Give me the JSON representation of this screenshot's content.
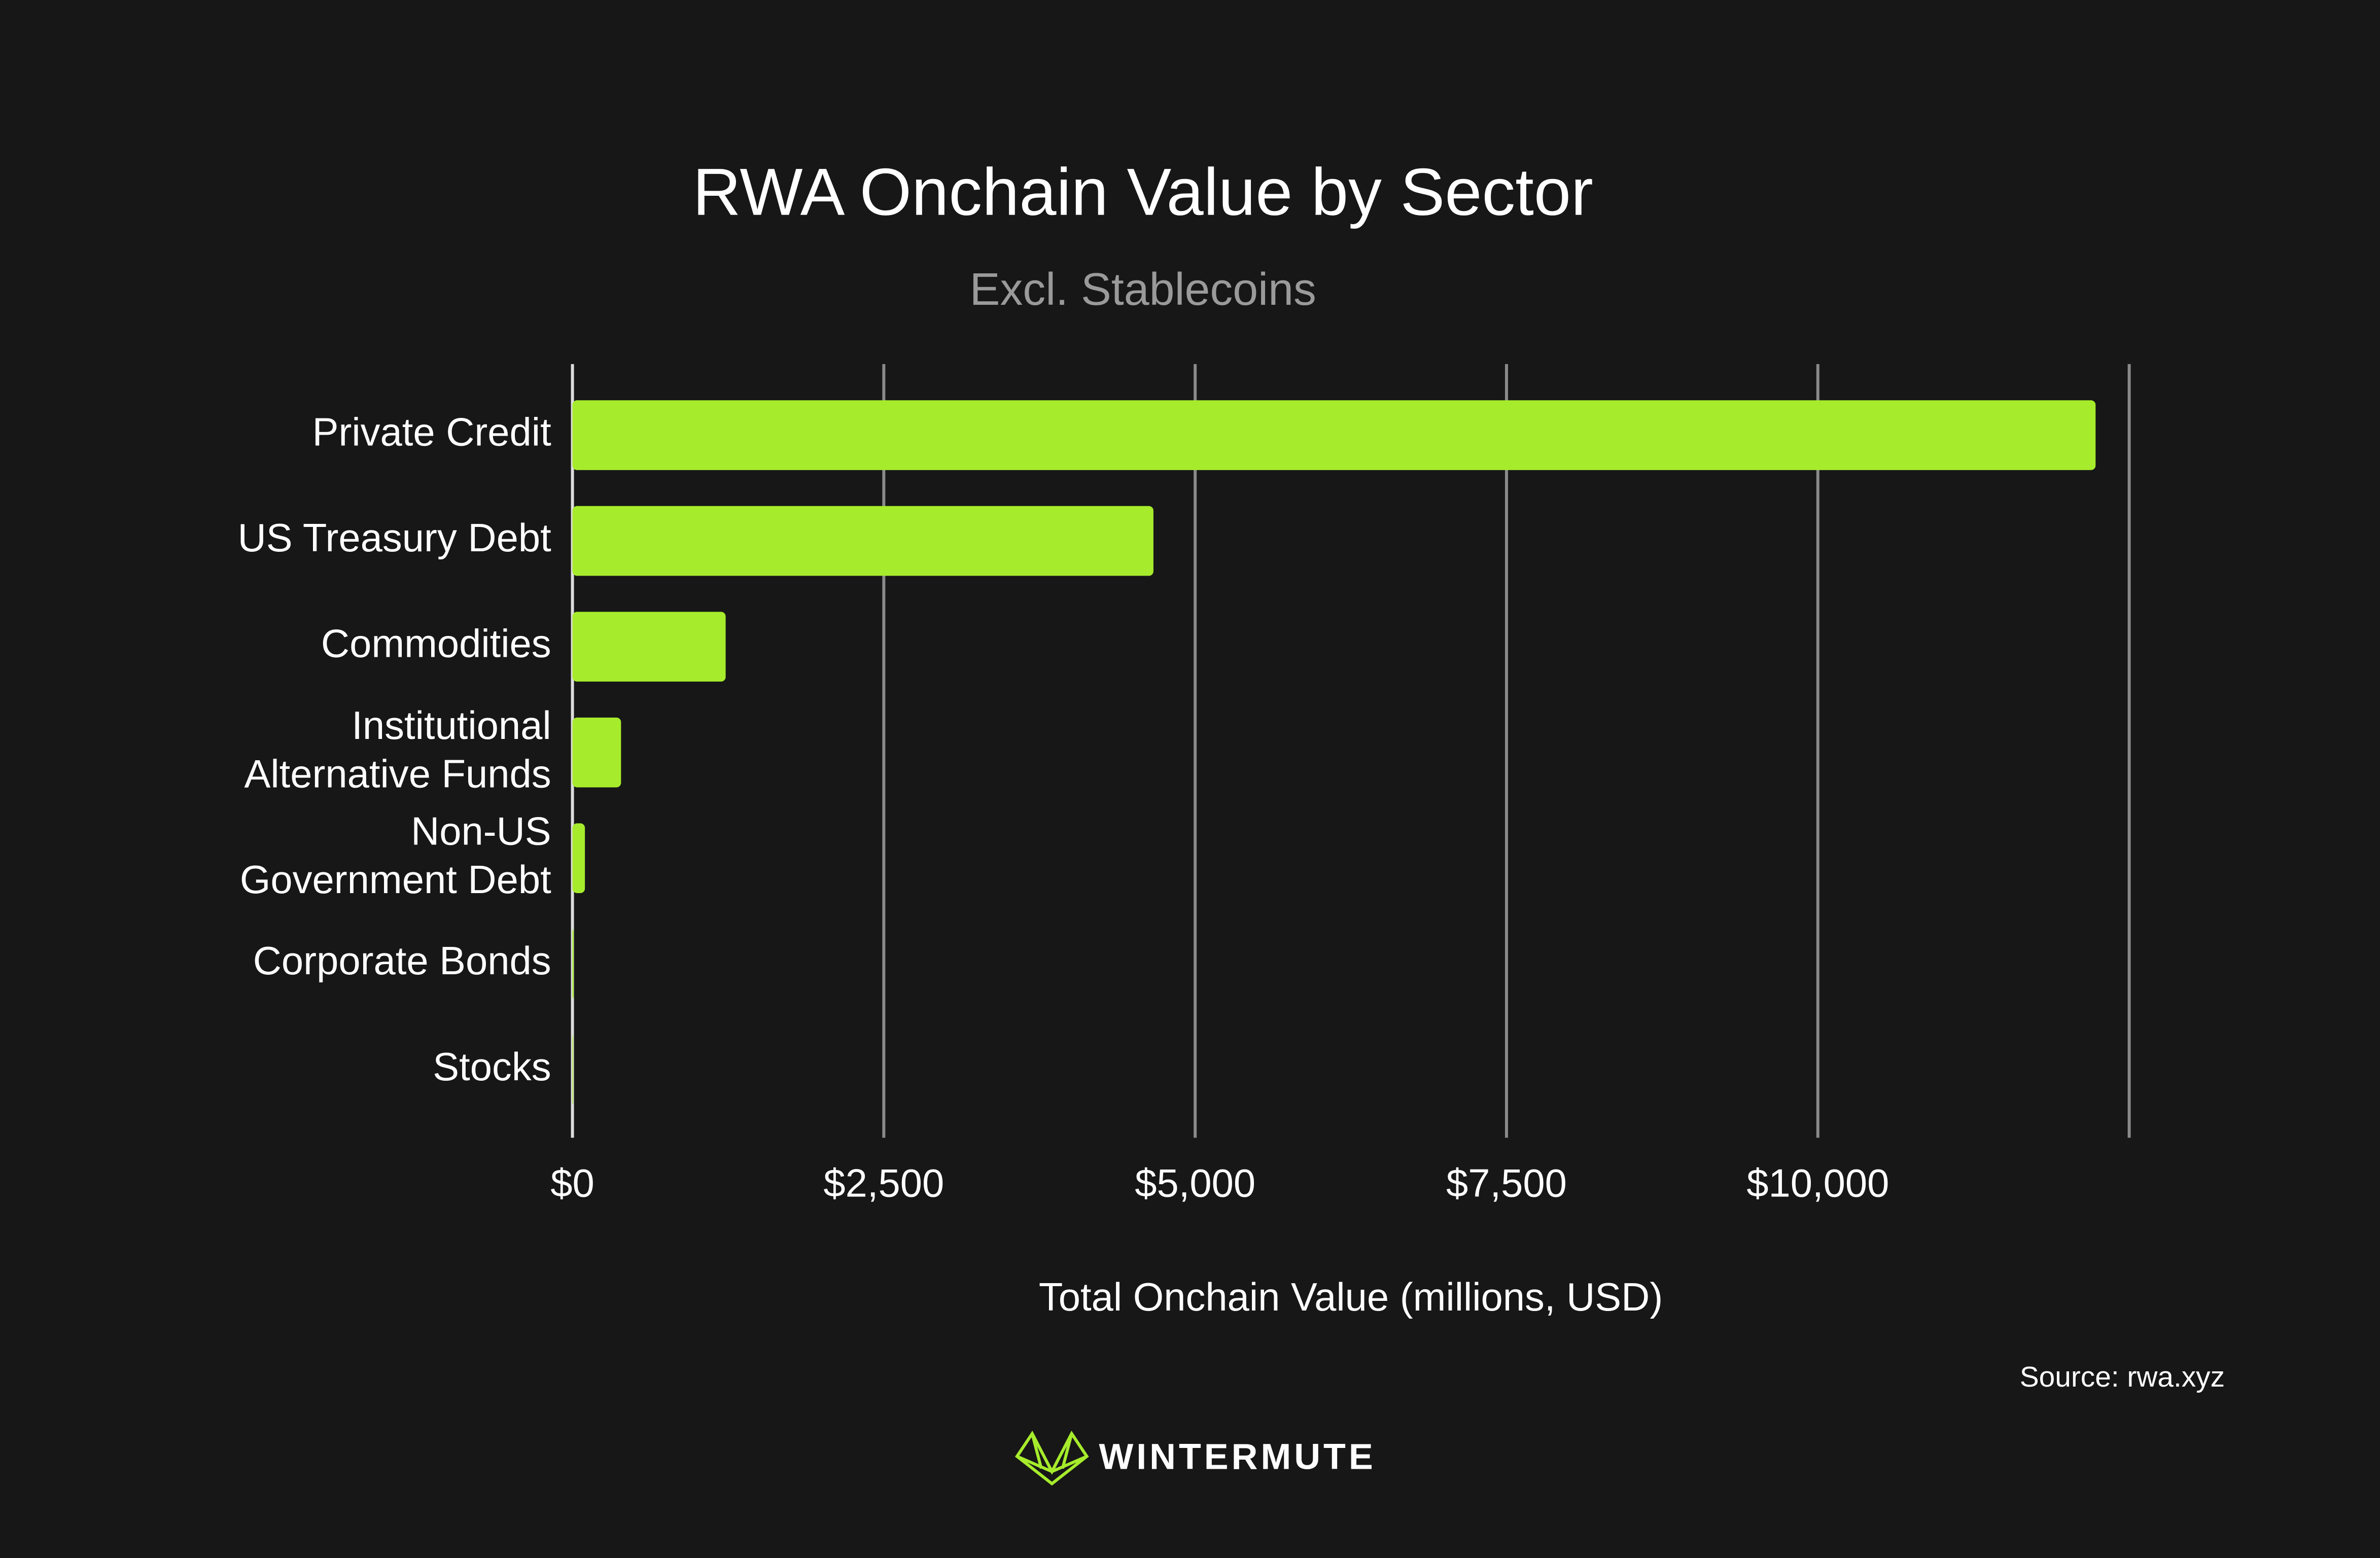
{
  "chart_data": {
    "type": "hbar",
    "title": "RWA Onchain Value by Sector",
    "subtitle": "Excl. Stablecoins",
    "categories": [
      "Private Credit",
      "US Treasury Debt",
      "Commodities",
      "Institutional\nAlternative Funds",
      "Non-US\nGovernment Debt",
      "Corporate Bonds",
      "Stocks"
    ],
    "values": [
      12230,
      4665,
      1230,
      390,
      100,
      10,
      5
    ],
    "color": "#a6ec2c",
    "xlabel": "Total Onchain Value (millions, USD)",
    "xlim": [
      0,
      12500
    ],
    "xticks": [
      {
        "value": 0,
        "label": "$0"
      },
      {
        "value": 2500,
        "label": "$2,500"
      },
      {
        "value": 5000,
        "label": "$5,000"
      },
      {
        "value": 7500,
        "label": "$7,500"
      },
      {
        "value": 10000,
        "label": "$10,000"
      }
    ],
    "grid": true,
    "source": "Source: rwa.xyz"
  },
  "brand": "WINTERMUTE"
}
